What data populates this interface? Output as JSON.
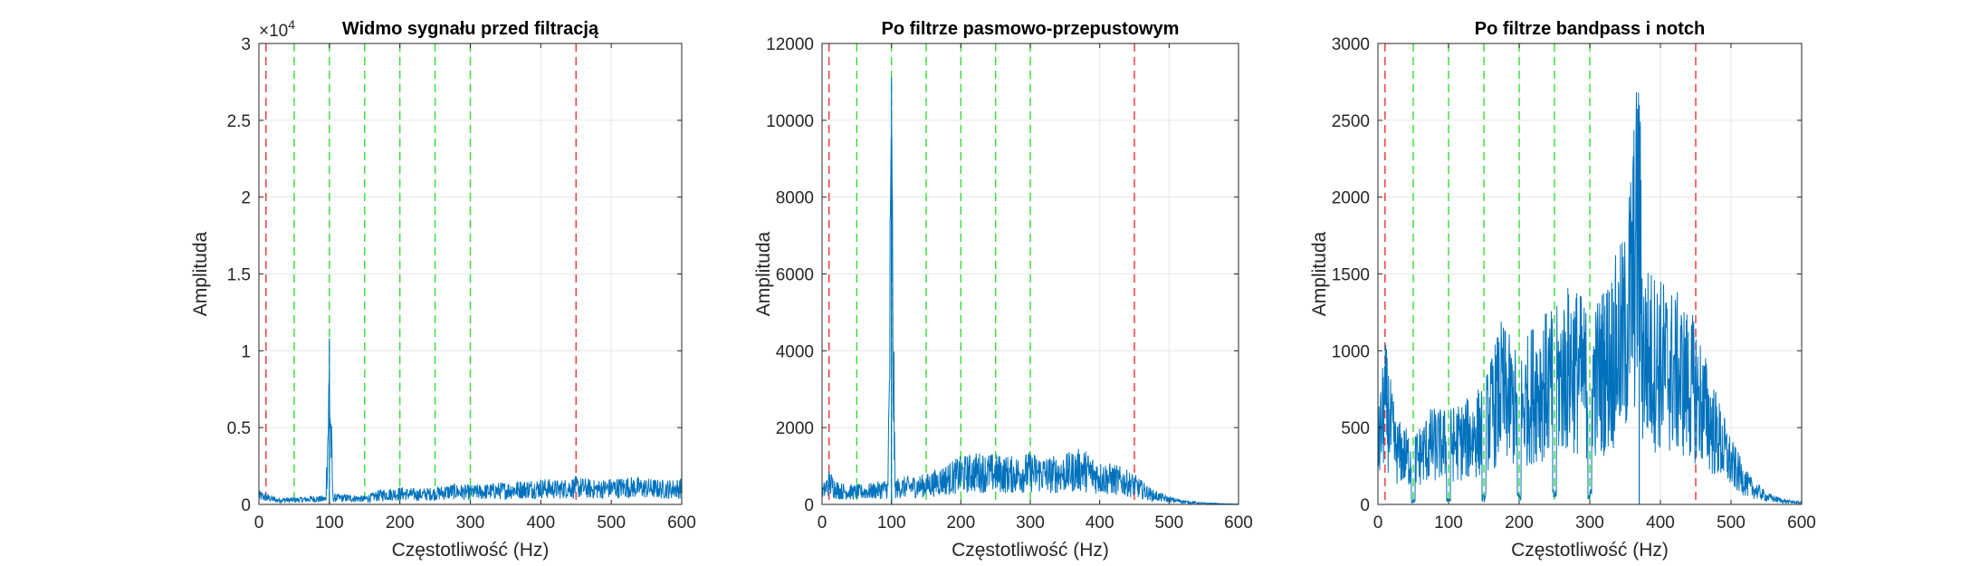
{
  "chart_data": [
    {
      "type": "line",
      "title": "Widmo sygnału przed filtracją",
      "xlabel": "Częstotliwość (Hz)",
      "ylabel": "Amplituda",
      "xlim": [
        0,
        600
      ],
      "ylim": [
        0,
        3
      ],
      "x_ticks": [
        0,
        100,
        200,
        300,
        400,
        500,
        600
      ],
      "y_ticks": [
        0,
        0.5,
        1,
        1.5,
        2,
        2.5,
        3
      ],
      "y_tick_labels": [
        "0",
        "0.5",
        "1",
        "1.5",
        "2",
        "2.5",
        "3"
      ],
      "y_exponent_base": "×10",
      "y_exponent_power": "4",
      "grid": true,
      "series_color": "#0072BD",
      "series": [
        {
          "x": [
            0,
            25,
            50,
            75,
            95,
            100,
            105,
            125,
            150,
            175,
            200,
            225,
            250,
            275,
            300,
            325,
            350,
            375,
            400,
            425,
            450,
            475,
            500,
            525,
            550,
            575,
            600
          ],
          "values": [
            0.08,
            0.04,
            0.04,
            0.05,
            0.05,
            1.08,
            0.06,
            0.06,
            0.05,
            0.09,
            0.1,
            0.09,
            0.1,
            0.12,
            0.11,
            0.12,
            0.13,
            0.14,
            0.15,
            0.14,
            0.16,
            0.14,
            0.15,
            0.16,
            0.15,
            0.14,
            0.15
          ]
        }
      ],
      "red_dashed_x": [
        10,
        450
      ],
      "green_dashed_x": [
        50,
        100,
        150,
        200,
        250,
        300
      ]
    },
    {
      "type": "line",
      "title": "Po filtrze pasmowo-przepustowym",
      "xlabel": "Częstotliwość (Hz)",
      "ylabel": "Amplituda",
      "xlim": [
        0,
        600
      ],
      "ylim": [
        0,
        12000
      ],
      "x_ticks": [
        0,
        100,
        200,
        300,
        400,
        500,
        600
      ],
      "y_ticks": [
        0,
        2000,
        4000,
        6000,
        8000,
        10000,
        12000
      ],
      "y_tick_labels": [
        "0",
        "2000",
        "4000",
        "6000",
        "8000",
        "10000",
        "12000"
      ],
      "grid": true,
      "series_color": "#0072BD",
      "series": [
        {
          "x": [
            0,
            10,
            25,
            50,
            75,
            95,
            100,
            105,
            125,
            150,
            175,
            200,
            225,
            250,
            275,
            300,
            325,
            350,
            375,
            400,
            425,
            450,
            475,
            500,
            525,
            550,
            575,
            600
          ],
          "values": [
            400,
            800,
            500,
            450,
            500,
            600,
            11100,
            600,
            650,
            700,
            900,
            1100,
            1200,
            1150,
            1100,
            1200,
            1100,
            1150,
            1300,
            1000,
            900,
            700,
            350,
            180,
            90,
            40,
            20,
            10
          ]
        }
      ],
      "red_dashed_x": [
        10,
        450
      ],
      "green_dashed_x": [
        50,
        100,
        150,
        200,
        250,
        300
      ]
    },
    {
      "type": "line",
      "title": "Po filtrze bandpass i notch",
      "xlabel": "Częstotliwość (Hz)",
      "ylabel": "Amplituda",
      "xlim": [
        0,
        600
      ],
      "ylim": [
        0,
        3000
      ],
      "x_ticks": [
        0,
        100,
        200,
        300,
        400,
        500,
        600
      ],
      "y_ticks": [
        0,
        500,
        1000,
        1500,
        2000,
        2500,
        3000
      ],
      "y_tick_labels": [
        "0",
        "500",
        "1000",
        "1500",
        "2000",
        "2500",
        "3000"
      ],
      "grid": true,
      "series_color": "#0072BD",
      "series": [
        {
          "x": [
            0,
            10,
            25,
            50,
            75,
            100,
            125,
            150,
            175,
            200,
            225,
            250,
            275,
            300,
            325,
            350,
            370,
            375,
            400,
            425,
            450,
            475,
            500,
            525,
            550,
            575,
            600
          ],
          "values": [
            500,
            950,
            500,
            400,
            550,
            550,
            600,
            700,
            1050,
            850,
            1100,
            1100,
            1300,
            1100,
            1300,
            1550,
            2600,
            1400,
            1300,
            1200,
            1050,
            700,
            380,
            170,
            70,
            30,
            15
          ]
        }
      ],
      "red_dashed_x": [
        10,
        450
      ],
      "green_dashed_x": [
        50,
        100,
        150,
        200,
        250,
        300
      ]
    }
  ]
}
